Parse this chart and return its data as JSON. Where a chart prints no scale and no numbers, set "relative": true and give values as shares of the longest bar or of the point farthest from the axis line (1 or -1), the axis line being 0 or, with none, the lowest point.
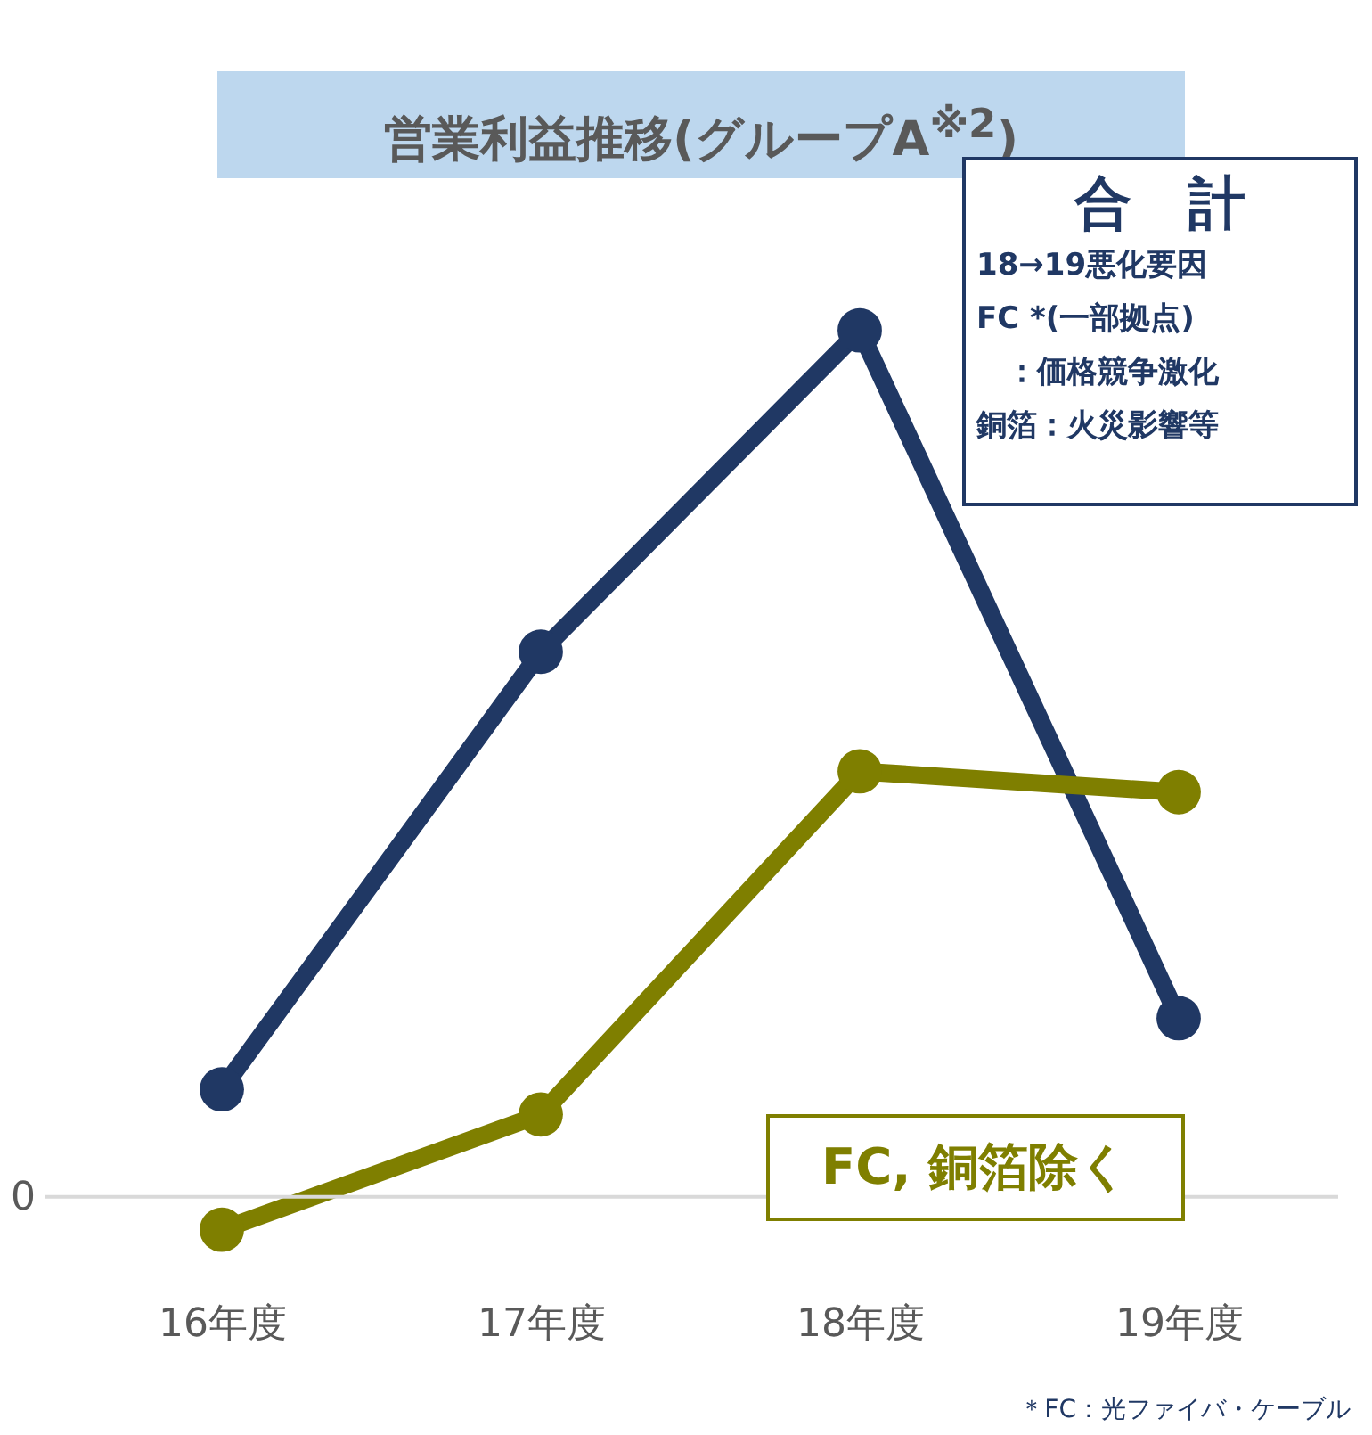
{
  "chart_data": {
    "type": "line",
    "title": "営業利益推移(グループA$^{※2}$)",
    "relative": true,
    "categories": [
      "16年度",
      "17年度",
      "18年度",
      "19年度"
    ],
    "series": [
      {
        "name": "合　計",
        "color": "#203864",
        "values": [
          0.124,
          0.629,
          1,
          0.206
        ]
      },
      {
        "name": "FC, 銅箔除く",
        "color": "#7f7f00",
        "values": [
          -0.038,
          0.095,
          0.491,
          0.467
        ]
      }
    ],
    "ref_lines": [
      {
        "axis": "y",
        "value": 0,
        "label": "0",
        "color": "#d9d9d9"
      }
    ],
    "annotations": [
      "18→19悪化要因",
      "FC *(一部拠点)",
      "　：価格競争激化",
      "銅箔：火災影響等",
      "＊FC：光ファイバ・ケーブル"
    ],
    "marker": "circle",
    "line_style": "solid",
    "grid": false,
    "legend": false
  }
}
